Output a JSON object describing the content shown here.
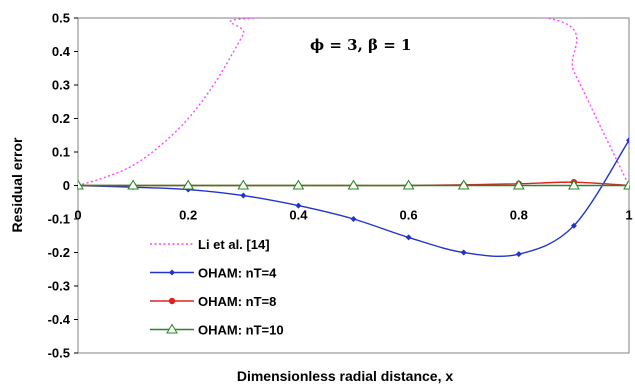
{
  "chart_data": {
    "type": "line",
    "title": "",
    "annotation": "ϕ = 3, β = 1",
    "xlabel": "Dimensionless radial distance, x",
    "ylabel": "Residual error",
    "xlim": [
      0,
      1
    ],
    "ylim": [
      -0.5,
      0.5
    ],
    "x_ticks": [
      "0",
      "0.2",
      "0.4",
      "0.6",
      "0.8",
      "1"
    ],
    "y_ticks": [
      "0.5",
      "0.4",
      "0.3",
      "0.2",
      "0.1",
      "0",
      "-0.1",
      "-0.2",
      "-0.3",
      "-0.4",
      "-0.5"
    ],
    "grid": false,
    "legend_position": "bottom-left",
    "series": [
      {
        "name": "Li et al. [14]",
        "color": "#ff44ff",
        "style": "dotted",
        "marker": "none",
        "x": [
          0,
          0.05,
          0.1,
          0.15,
          0.2,
          0.25,
          0.3,
          0.32,
          0.85,
          0.9,
          0.95,
          1.0
        ],
        "y": [
          0,
          0.025,
          0.06,
          0.12,
          0.2,
          0.31,
          0.45,
          0.5,
          0.5,
          0.34,
          0.17,
          0
        ]
      },
      {
        "name": "OHAM: nT=4",
        "color": "#2233cc",
        "style": "solid",
        "marker": "diamond",
        "x": [
          0,
          0.1,
          0.2,
          0.3,
          0.4,
          0.5,
          0.6,
          0.7,
          0.8,
          0.9,
          1.0
        ],
        "y": [
          0,
          -0.005,
          -0.012,
          -0.03,
          -0.06,
          -0.1,
          -0.155,
          -0.2,
          -0.205,
          -0.12,
          0.135
        ]
      },
      {
        "name": "OHAM: nT=8",
        "color": "#dd2222",
        "style": "solid",
        "marker": "circle",
        "x": [
          0,
          0.1,
          0.2,
          0.3,
          0.4,
          0.5,
          0.6,
          0.7,
          0.8,
          0.9,
          1.0
        ],
        "y": [
          0,
          0,
          0,
          0,
          0,
          0,
          0,
          0.002,
          0.005,
          0.01,
          0
        ]
      },
      {
        "name": "OHAM: nT=10",
        "color": "#228822",
        "style": "solid",
        "marker": "triangle",
        "x": [
          0,
          0.1,
          0.2,
          0.3,
          0.4,
          0.5,
          0.6,
          0.7,
          0.8,
          0.9,
          1.0
        ],
        "y": [
          0,
          0,
          0,
          0,
          0,
          0,
          0,
          0,
          0,
          0,
          0
        ]
      }
    ]
  }
}
